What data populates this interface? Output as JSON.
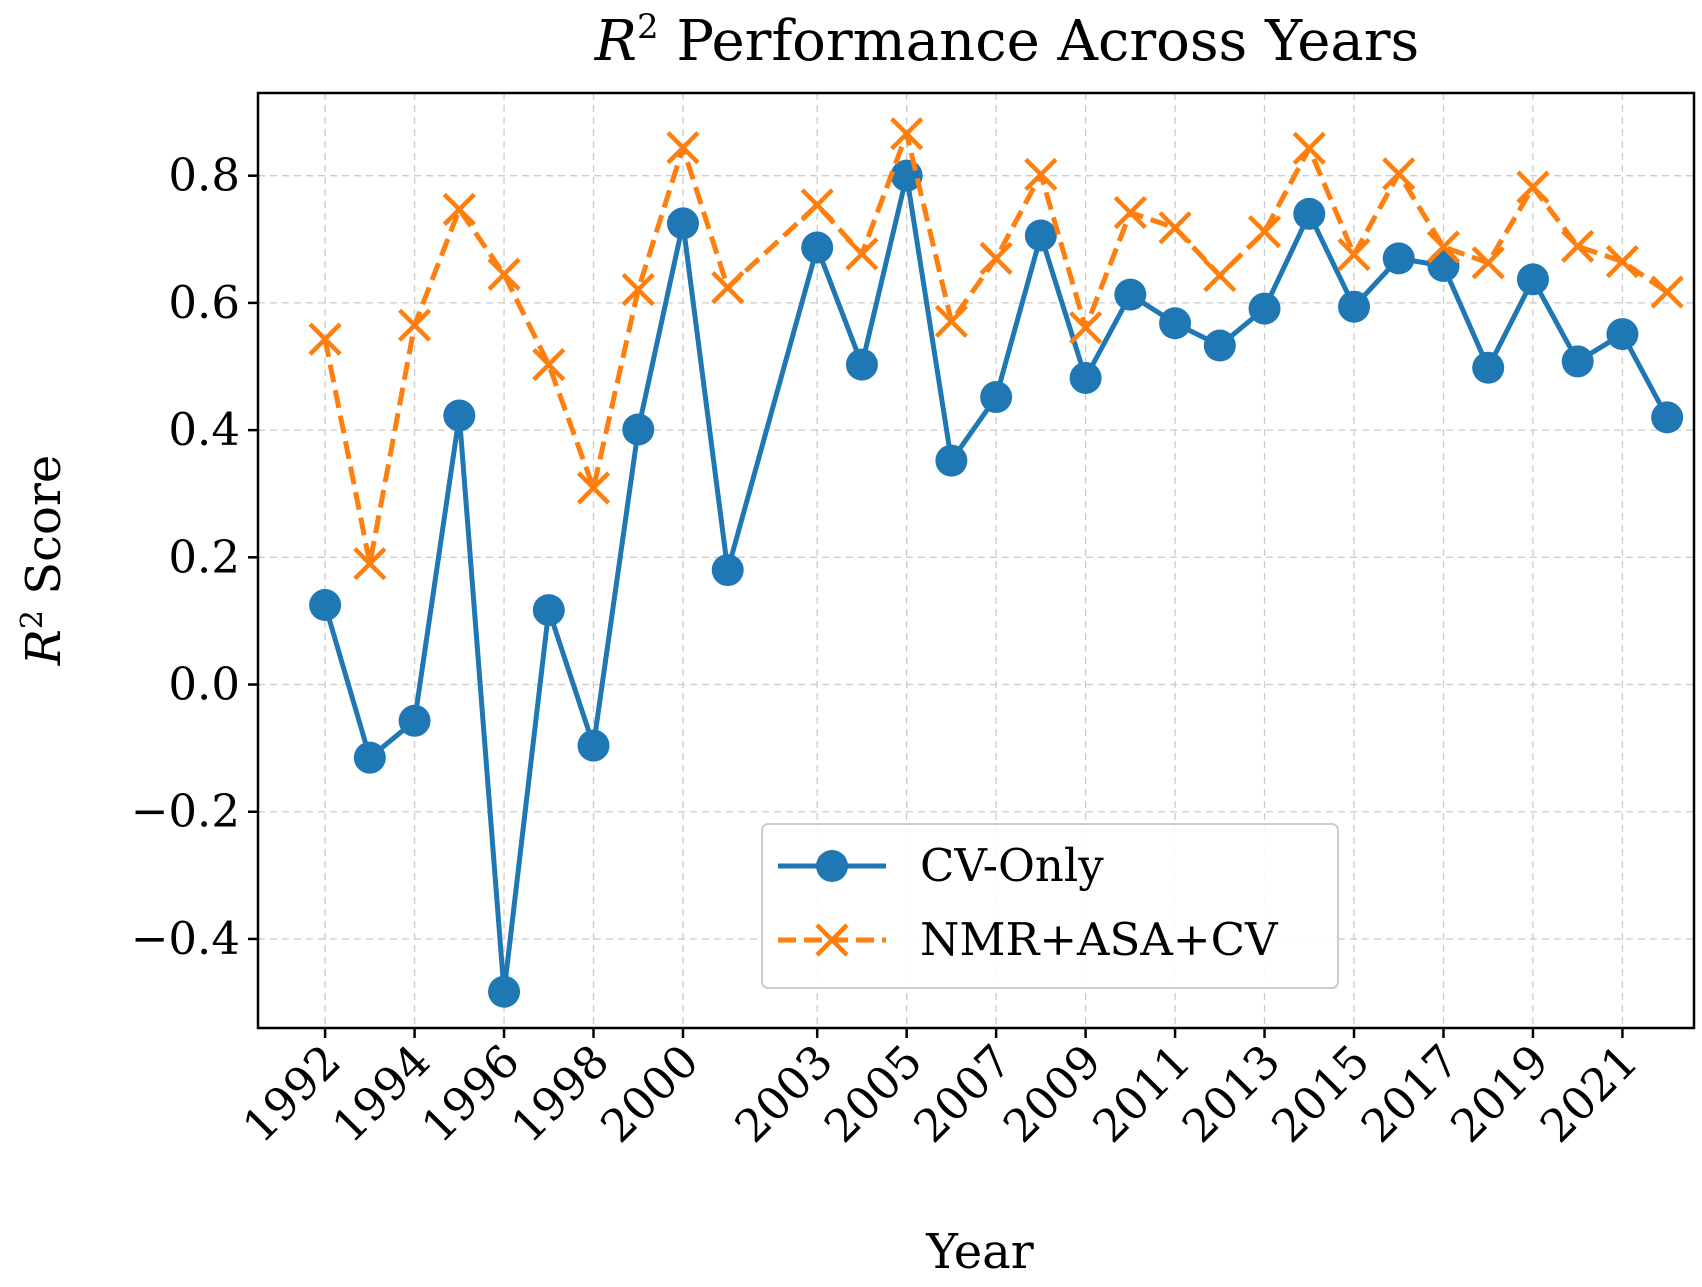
{
  "chart_data": {
    "type": "line",
    "title": "R² Performance Across Years",
    "title_math": "R",
    "title_sup": "2",
    "title_rest": " Performance Across Years",
    "xlabel": "Year",
    "ylabel": "R² Score",
    "ylabel_math": "R",
    "ylabel_sup": "2",
    "ylabel_rest": " Score",
    "ylim": [
      -0.54,
      0.93
    ],
    "xlim": [
      1990.5,
      2022.6
    ],
    "y_ticks": [
      -0.4,
      -0.2,
      0.0,
      0.2,
      0.4,
      0.6,
      0.8
    ],
    "y_tick_labels": [
      "−0.4",
      "−0.2",
      "0.0",
      "0.2",
      "0.4",
      "0.6",
      "0.8"
    ],
    "x_ticks": [
      1992,
      1994,
      1996,
      1998,
      2000,
      2003,
      2005,
      2007,
      2009,
      2011,
      2013,
      2015,
      2017,
      2019,
      2021
    ],
    "x_tick_labels": [
      "1992",
      "1994",
      "1996",
      "1998",
      "2000",
      "2003",
      "2005",
      "2007",
      "2009",
      "2011",
      "2013",
      "2015",
      "2017",
      "2019",
      "2021"
    ],
    "grid": true,
    "legend_position": "lower-center",
    "x": [
      1992,
      1993,
      1994,
      1995,
      1996,
      1997,
      1998,
      1999,
      2000,
      2001,
      2003,
      2004,
      2005,
      2006,
      2007,
      2008,
      2009,
      2010,
      2011,
      2012,
      2013,
      2014,
      2015,
      2016,
      2017,
      2018,
      2019,
      2020,
      2021,
      2022
    ],
    "series": [
      {
        "name": "CV-Only",
        "color": "#1f77b4",
        "marker": "circle",
        "line_style": "solid",
        "values": [
          0.125,
          -0.115,
          -0.057,
          0.423,
          -0.483,
          0.117,
          -0.096,
          0.401,
          0.725,
          0.18,
          0.687,
          0.503,
          0.8,
          0.352,
          0.452,
          0.706,
          0.482,
          0.613,
          0.568,
          0.533,
          0.591,
          0.74,
          0.594,
          0.67,
          0.658,
          0.498,
          0.637,
          0.508,
          0.551,
          0.42
        ]
      },
      {
        "name": "NMR+ASA+CV",
        "color": "#ff7f0e",
        "marker": "x",
        "line_style": "dashed",
        "values": [
          0.543,
          0.19,
          0.565,
          0.747,
          0.645,
          0.503,
          0.309,
          0.621,
          0.844,
          0.624,
          0.754,
          0.677,
          0.866,
          0.571,
          0.67,
          0.802,
          0.561,
          0.742,
          0.718,
          0.643,
          0.712,
          0.843,
          0.676,
          0.803,
          0.688,
          0.663,
          0.782,
          0.689,
          0.665,
          0.617
        ]
      }
    ]
  }
}
